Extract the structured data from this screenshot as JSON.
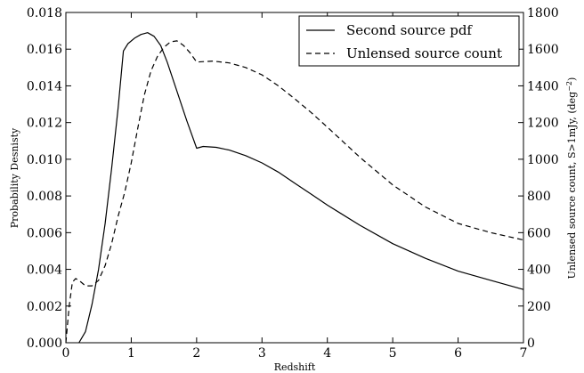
{
  "chart_data": {
    "type": "line",
    "title": "",
    "xlabel": "Redshift",
    "ylabel_left": "Probability Desnisty",
    "ylabel_right": "Unlensed source count, S>1mJy, (deg",
    "ylabel_right_sup": "−2",
    "ylabel_right_close": ")",
    "xlim": [
      0,
      7
    ],
    "ylim_left": [
      0,
      0.018
    ],
    "ylim_right": [
      0,
      1800
    ],
    "x_ticks": [
      0,
      1,
      2,
      3,
      4,
      5,
      6,
      7
    ],
    "x_tick_labels": [
      "0",
      "1",
      "2",
      "3",
      "4",
      "5",
      "6",
      "7"
    ],
    "y_left_ticks": [
      0,
      0.002,
      0.004,
      0.006,
      0.008,
      0.01,
      0.012,
      0.014,
      0.016,
      0.018
    ],
    "y_left_tick_labels": [
      "0.000",
      "0.002",
      "0.004",
      "0.006",
      "0.008",
      "0.010",
      "0.012",
      "0.014",
      "0.016",
      "0.018"
    ],
    "y_right_ticks": [
      0,
      200,
      400,
      600,
      800,
      1000,
      1200,
      1400,
      1600,
      1800
    ],
    "y_right_tick_labels": [
      "0",
      "200",
      "400",
      "600",
      "800",
      "1000",
      "1200",
      "1400",
      "1600",
      "1800"
    ],
    "grid": false,
    "legend_position": "top-right",
    "series": [
      {
        "name": "Second source pdf",
        "axis": "left",
        "style": "solid",
        "color": "#000000",
        "x": [
          0.2,
          0.3,
          0.4,
          0.5,
          0.6,
          0.7,
          0.8,
          0.88,
          0.95,
          1.05,
          1.15,
          1.25,
          1.35,
          1.45,
          1.55,
          1.7,
          1.85,
          2.0,
          2.1,
          2.3,
          2.5,
          2.75,
          3.0,
          3.25,
          3.5,
          3.75,
          4.0,
          4.5,
          5.0,
          5.5,
          6.0,
          6.5,
          7.0
        ],
        "y": [
          0.0,
          0.0006,
          0.0021,
          0.004,
          0.0065,
          0.0095,
          0.0128,
          0.0159,
          0.0163,
          0.0166,
          0.0168,
          0.0169,
          0.0167,
          0.0162,
          0.0153,
          0.0137,
          0.0121,
          0.0106,
          0.0107,
          0.01065,
          0.0105,
          0.0102,
          0.0098,
          0.0093,
          0.0087,
          0.0081,
          0.0075,
          0.0064,
          0.0054,
          0.0046,
          0.0039,
          0.0034,
          0.0029
        ]
      },
      {
        "name": "Unlensed source count",
        "axis": "right",
        "style": "dashed",
        "color": "#000000",
        "x": [
          0.0,
          0.05,
          0.1,
          0.15,
          0.2,
          0.3,
          0.4,
          0.5,
          0.6,
          0.7,
          0.8,
          0.9,
          1.0,
          1.1,
          1.2,
          1.3,
          1.4,
          1.5,
          1.6,
          1.7,
          1.8,
          1.9,
          2.0,
          2.25,
          2.5,
          2.75,
          3.0,
          3.25,
          3.5,
          3.75,
          4.0,
          4.5,
          5.0,
          5.5,
          6.0,
          6.5,
          7.0
        ],
        "y": [
          0,
          200,
          330,
          350,
          340,
          310,
          310,
          340,
          420,
          540,
          690,
          820,
          980,
          1170,
          1350,
          1480,
          1560,
          1610,
          1640,
          1645,
          1620,
          1580,
          1530,
          1535,
          1525,
          1500,
          1460,
          1400,
          1330,
          1255,
          1175,
          1010,
          860,
          740,
          650,
          600,
          560
        ]
      }
    ]
  }
}
